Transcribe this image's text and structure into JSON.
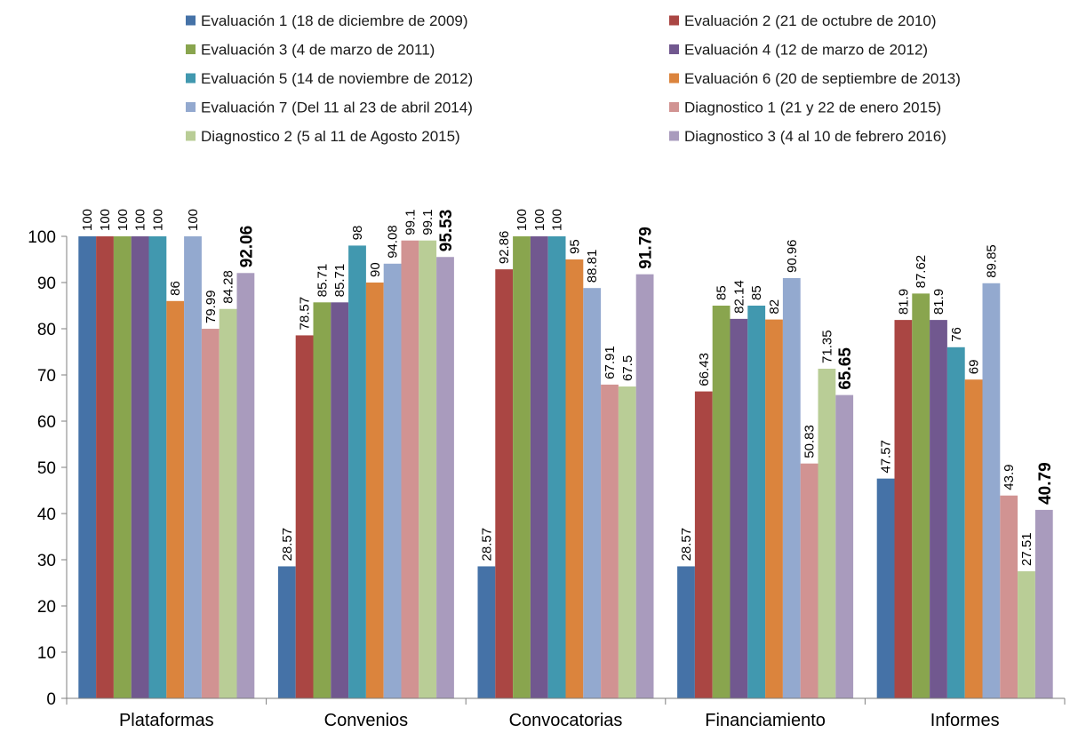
{
  "chart_data": {
    "type": "bar",
    "categories": [
      "Plataformas",
      "Convenios",
      "Convocatorias",
      "Financiamiento",
      "Informes"
    ],
    "ylim": [
      0,
      100
    ],
    "yticks": [
      0,
      10,
      20,
      30,
      40,
      50,
      60,
      70,
      80,
      90,
      100
    ],
    "legend_position": "top",
    "emphasized_series": "Diagnostico 3 (4 al 10 de febrero 2016)",
    "series": [
      {
        "name": "Evaluación 1 (18 de diciembre de 2009)",
        "color": "#4572A7",
        "values": [
          100,
          28.57,
          28.57,
          28.57,
          47.57
        ],
        "labels": [
          "100",
          "28.57",
          "28.57",
          "28.57",
          "47.57"
        ]
      },
      {
        "name": "Evaluación 2 (21 de octubre de 2010)",
        "color": "#AA4643",
        "values": [
          100,
          78.57,
          92.86,
          66.43,
          81.9
        ],
        "labels": [
          "100",
          "78.57",
          "92.86",
          "66.43",
          "81.9"
        ]
      },
      {
        "name": "Evaluación 3 (4 de marzo de 2011)",
        "color": "#89A54E",
        "values": [
          100,
          85.71,
          100,
          85,
          87.62
        ],
        "labels": [
          "100",
          "85.71",
          "100",
          "85",
          "87.62"
        ]
      },
      {
        "name": "Evaluación 4 (12 de marzo de 2012)",
        "color": "#71588F",
        "values": [
          100,
          85.71,
          100,
          82.14,
          81.9
        ],
        "labels": [
          "100",
          "85.71",
          "100",
          "82.14",
          "81.9"
        ]
      },
      {
        "name": "Evaluación 5 (14 de noviembre de 2012)",
        "color": "#4198AF",
        "values": [
          100,
          98,
          100,
          85,
          76
        ],
        "labels": [
          "100",
          "98",
          "100",
          "85",
          "76"
        ]
      },
      {
        "name": "Evaluación 6 (20 de septiembre de 2013)",
        "color": "#DB843D",
        "values": [
          86,
          90,
          95,
          82,
          69
        ],
        "labels": [
          "86",
          "90",
          "95",
          "82",
          "69"
        ]
      },
      {
        "name": "Evaluación 7 (Del 11 al 23 de abril 2014)",
        "color": "#93A9CF",
        "values": [
          100,
          94.08,
          88.81,
          90.96,
          89.85
        ],
        "labels": [
          "100",
          "94.08",
          "88.81",
          "90.96",
          "89.85"
        ]
      },
      {
        "name": "Diagnostico 1 (21 y 22 de enero 2015)",
        "color": "#D19392",
        "values": [
          79.99,
          99.1,
          67.91,
          50.83,
          43.9
        ],
        "labels": [
          "79.99",
          "99.1",
          "67.91",
          "50.83",
          "43.9"
        ]
      },
      {
        "name": "Diagnostico 2 (5 al 11 de Agosto 2015)",
        "color": "#B9CD96",
        "values": [
          84.28,
          99.1,
          67.5,
          71.35,
          27.51
        ],
        "labels": [
          "84.28",
          "99.1",
          "67.5",
          "71.35",
          "27.51"
        ]
      },
      {
        "name": "Diagnostico 3 (4 al 10 de febrero 2016)",
        "color": "#A99BBD",
        "values": [
          92.06,
          95.53,
          91.79,
          65.65,
          40.79
        ],
        "labels": [
          "92.06",
          "95.53",
          "91.79",
          "65.65",
          "40.79"
        ]
      }
    ]
  }
}
